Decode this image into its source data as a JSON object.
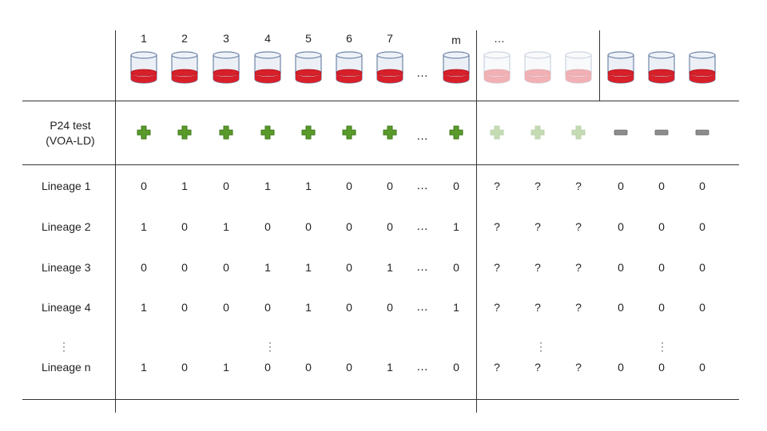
{
  "columns": {
    "headers": [
      "1",
      "2",
      "3",
      "4",
      "5",
      "6",
      "7",
      "m",
      "…"
    ],
    "ellipsis": "…"
  },
  "test_row": {
    "label_line1": "P24 test",
    "label_line2": "(VOA-LD)",
    "results": [
      "positive",
      "positive",
      "positive",
      "positive",
      "positive",
      "positive",
      "positive",
      "positive",
      "unknown",
      "unknown",
      "unknown",
      "negative",
      "negative",
      "negative"
    ]
  },
  "lineages": [
    {
      "label": "Lineage 1",
      "values": [
        "0",
        "1",
        "0",
        "1",
        "1",
        "0",
        "0",
        "0",
        "?",
        "?",
        "?",
        "0",
        "0",
        "0"
      ]
    },
    {
      "label": "Lineage 2",
      "values": [
        "1",
        "0",
        "1",
        "0",
        "0",
        "0",
        "0",
        "1",
        "?",
        "?",
        "?",
        "0",
        "0",
        "0"
      ]
    },
    {
      "label": "Lineage 3",
      "values": [
        "0",
        "0",
        "0",
        "1",
        "1",
        "0",
        "1",
        "0",
        "?",
        "?",
        "?",
        "0",
        "0",
        "0"
      ]
    },
    {
      "label": "Lineage 4",
      "values": [
        "1",
        "0",
        "0",
        "0",
        "1",
        "0",
        "0",
        "1",
        "?",
        "?",
        "?",
        "0",
        "0",
        "0"
      ]
    },
    {
      "label": "Lineage n",
      "values": [
        "1",
        "0",
        "1",
        "0",
        "0",
        "0",
        "1",
        "0",
        "?",
        "?",
        "?",
        "0",
        "0",
        "0"
      ]
    }
  ],
  "row_ellipsis": "…",
  "colors": {
    "positive": "#5a9a2a",
    "positive_border": "#3e7a1a",
    "negative": "#8c8c8c",
    "blood": "#d8202a",
    "tube_glass": "#c9d4e4",
    "tube_border": "#6f85a8"
  }
}
